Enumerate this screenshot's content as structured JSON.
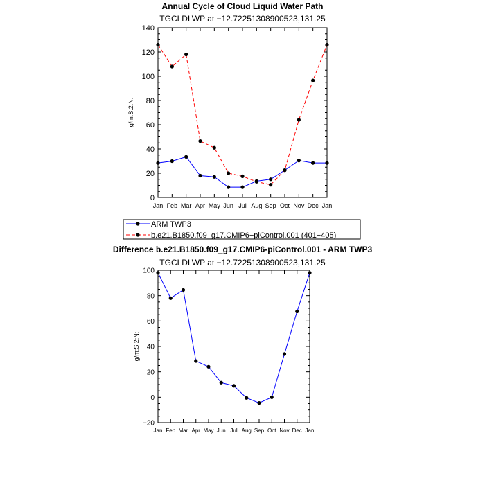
{
  "chart_data": [
    {
      "type": "line",
      "title": "Annual Cycle of Cloud Liquid Water Path",
      "subtitle": "TGCLDLWP  at  −12.72251308900523,131.25",
      "ylabel": "g/m:S:2:N:",
      "ylim": [
        0,
        140
      ],
      "yticks": [
        0,
        20,
        40,
        60,
        80,
        100,
        120,
        140
      ],
      "categories": [
        "Jan",
        "Feb",
        "Mar",
        "Apr",
        "May",
        "Jun",
        "Jul",
        "Aug",
        "Sep",
        "Oct",
        "Nov",
        "Dec",
        "Jan"
      ],
      "legend_position": "bottom",
      "series": [
        {
          "name": "ARM  TWP3",
          "color": "#0000ff",
          "dash": "solid",
          "values": [
            28.5,
            30,
            33.5,
            18,
            17,
            8.5,
            8.5,
            13.5,
            15,
            22.5,
            30.5,
            28.5,
            28.5
          ]
        },
        {
          "name": "b.e21.B1850.f09_g17.CMIP6−piControl.001 (401−405)",
          "color": "#ff0000",
          "dash": "dashed",
          "values": [
            126,
            108,
            118,
            46.5,
            41,
            20,
            17.5,
            13,
            10.5,
            22.5,
            64,
            96.5,
            126
          ]
        }
      ]
    },
    {
      "type": "line",
      "title": "Difference b.e21.B1850.f09_g17.CMIP6-piControl.001 - ARM TWP3",
      "subtitle": "TGCLDLWP  at  −12.72251308900523,131.25",
      "ylabel": "g/m:S:2:N:",
      "ylim": [
        -20,
        100
      ],
      "yticks": [
        -20,
        0,
        20,
        40,
        60,
        80,
        100
      ],
      "categories": [
        "Jan",
        "Feb",
        "Mar",
        "Apr",
        "May",
        "Jun",
        "Jul",
        "Aug",
        "Sep",
        "Oct",
        "Nov",
        "Dec",
        "Jan"
      ],
      "series": [
        {
          "color": "#0000ff",
          "dash": "solid",
          "values": [
            98,
            78,
            84.5,
            28.5,
            24,
            11.5,
            9,
            -0.5,
            -4.5,
            0,
            34,
            67.5,
            98
          ]
        }
      ]
    }
  ]
}
